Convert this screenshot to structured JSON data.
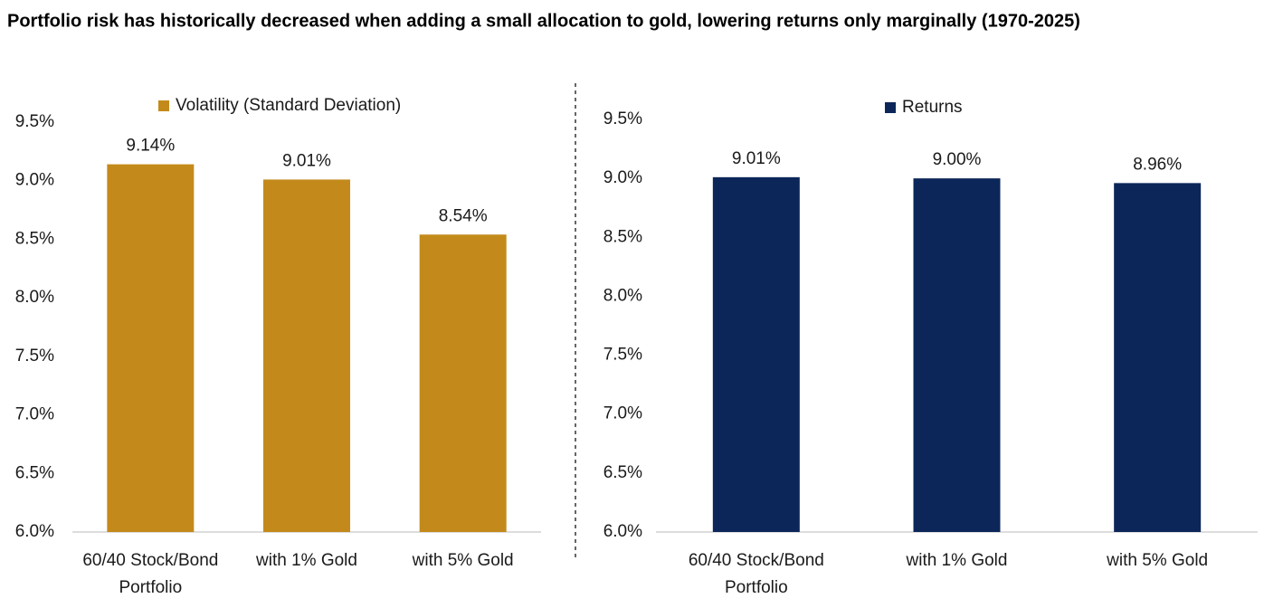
{
  "title": "Portfolio risk has historically decreased when adding a small allocation to gold, lowering returns only marginally (1970-2025)",
  "chart_data": [
    {
      "type": "bar",
      "categories": [
        "60/40 Stock/Bond Portfolio",
        "with 1% Gold",
        "with 5% Gold"
      ],
      "series": [
        {
          "name": "Volatility (Standard Deviation)",
          "color": "#c38a1b",
          "values": [
            9.14,
            9.01,
            8.54
          ],
          "value_labels": [
            "9.14%",
            "9.01%",
            "8.54%"
          ]
        }
      ],
      "ylim": [
        6.0,
        9.5
      ],
      "yticks": [
        {
          "value": 6.0,
          "label": "6.0%"
        },
        {
          "value": 6.5,
          "label": "6.5%"
        },
        {
          "value": 7.0,
          "label": "7.0%"
        },
        {
          "value": 7.5,
          "label": "7.5%"
        },
        {
          "value": 8.0,
          "label": "8.0%"
        },
        {
          "value": 8.5,
          "label": "8.5%"
        },
        {
          "value": 9.0,
          "label": "9.0%"
        },
        {
          "value": 9.5,
          "label": "9.5%"
        }
      ],
      "grid": false,
      "legend": "top"
    },
    {
      "type": "bar",
      "categories": [
        "60/40 Stock/Bond Portfolio",
        "with 1% Gold",
        "with 5% Gold"
      ],
      "series": [
        {
          "name": "Returns",
          "color": "#0c2659",
          "values": [
            9.01,
            9.0,
            8.96
          ],
          "value_labels": [
            "9.01%",
            "9.00%",
            "8.96%"
          ]
        }
      ],
      "ylim": [
        6.0,
        9.5
      ],
      "yticks": [
        {
          "value": 6.0,
          "label": "6.0%"
        },
        {
          "value": 6.5,
          "label": "6.5%"
        },
        {
          "value": 7.0,
          "label": "7.0%"
        },
        {
          "value": 7.5,
          "label": "7.5%"
        },
        {
          "value": 8.0,
          "label": "8.0%"
        },
        {
          "value": 8.5,
          "label": "8.5%"
        },
        {
          "value": 9.0,
          "label": "9.0%"
        },
        {
          "value": 9.5,
          "label": "9.5%"
        }
      ],
      "grid": false,
      "legend": "top"
    }
  ]
}
